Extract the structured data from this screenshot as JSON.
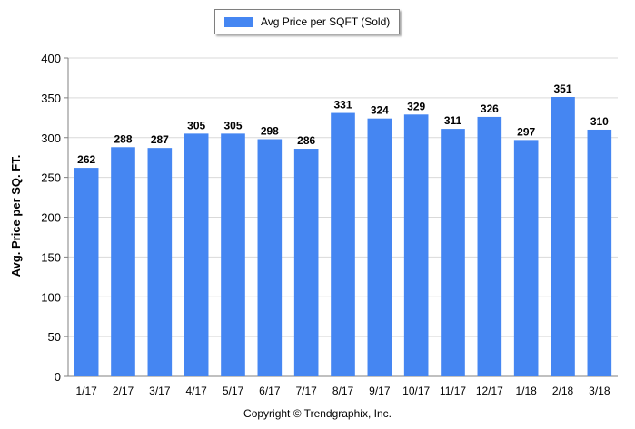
{
  "chart_data": {
    "type": "bar",
    "categories": [
      "1/17",
      "2/17",
      "3/17",
      "4/17",
      "5/17",
      "6/17",
      "7/17",
      "8/17",
      "9/17",
      "10/17",
      "11/17",
      "12/17",
      "1/18",
      "2/18",
      "3/18"
    ],
    "series": [
      {
        "name": "Avg Price per SQFT (Sold)",
        "values": [
          262,
          288,
          287,
          305,
          305,
          298,
          286,
          331,
          324,
          329,
          311,
          326,
          297,
          351,
          310
        ]
      }
    ],
    "ylabel": "Avg. Price per SQ. FT.",
    "xlabel": "",
    "ylim": [
      0,
      400
    ],
    "yticks": [
      0,
      50,
      100,
      150,
      200,
      250,
      300,
      350,
      400
    ],
    "grid": true,
    "legend_position": "top-center",
    "data_labels": true,
    "bar_color": "#4586f2"
  },
  "footer": {
    "copyright": "Copyright © Trendgraphix, Inc."
  }
}
